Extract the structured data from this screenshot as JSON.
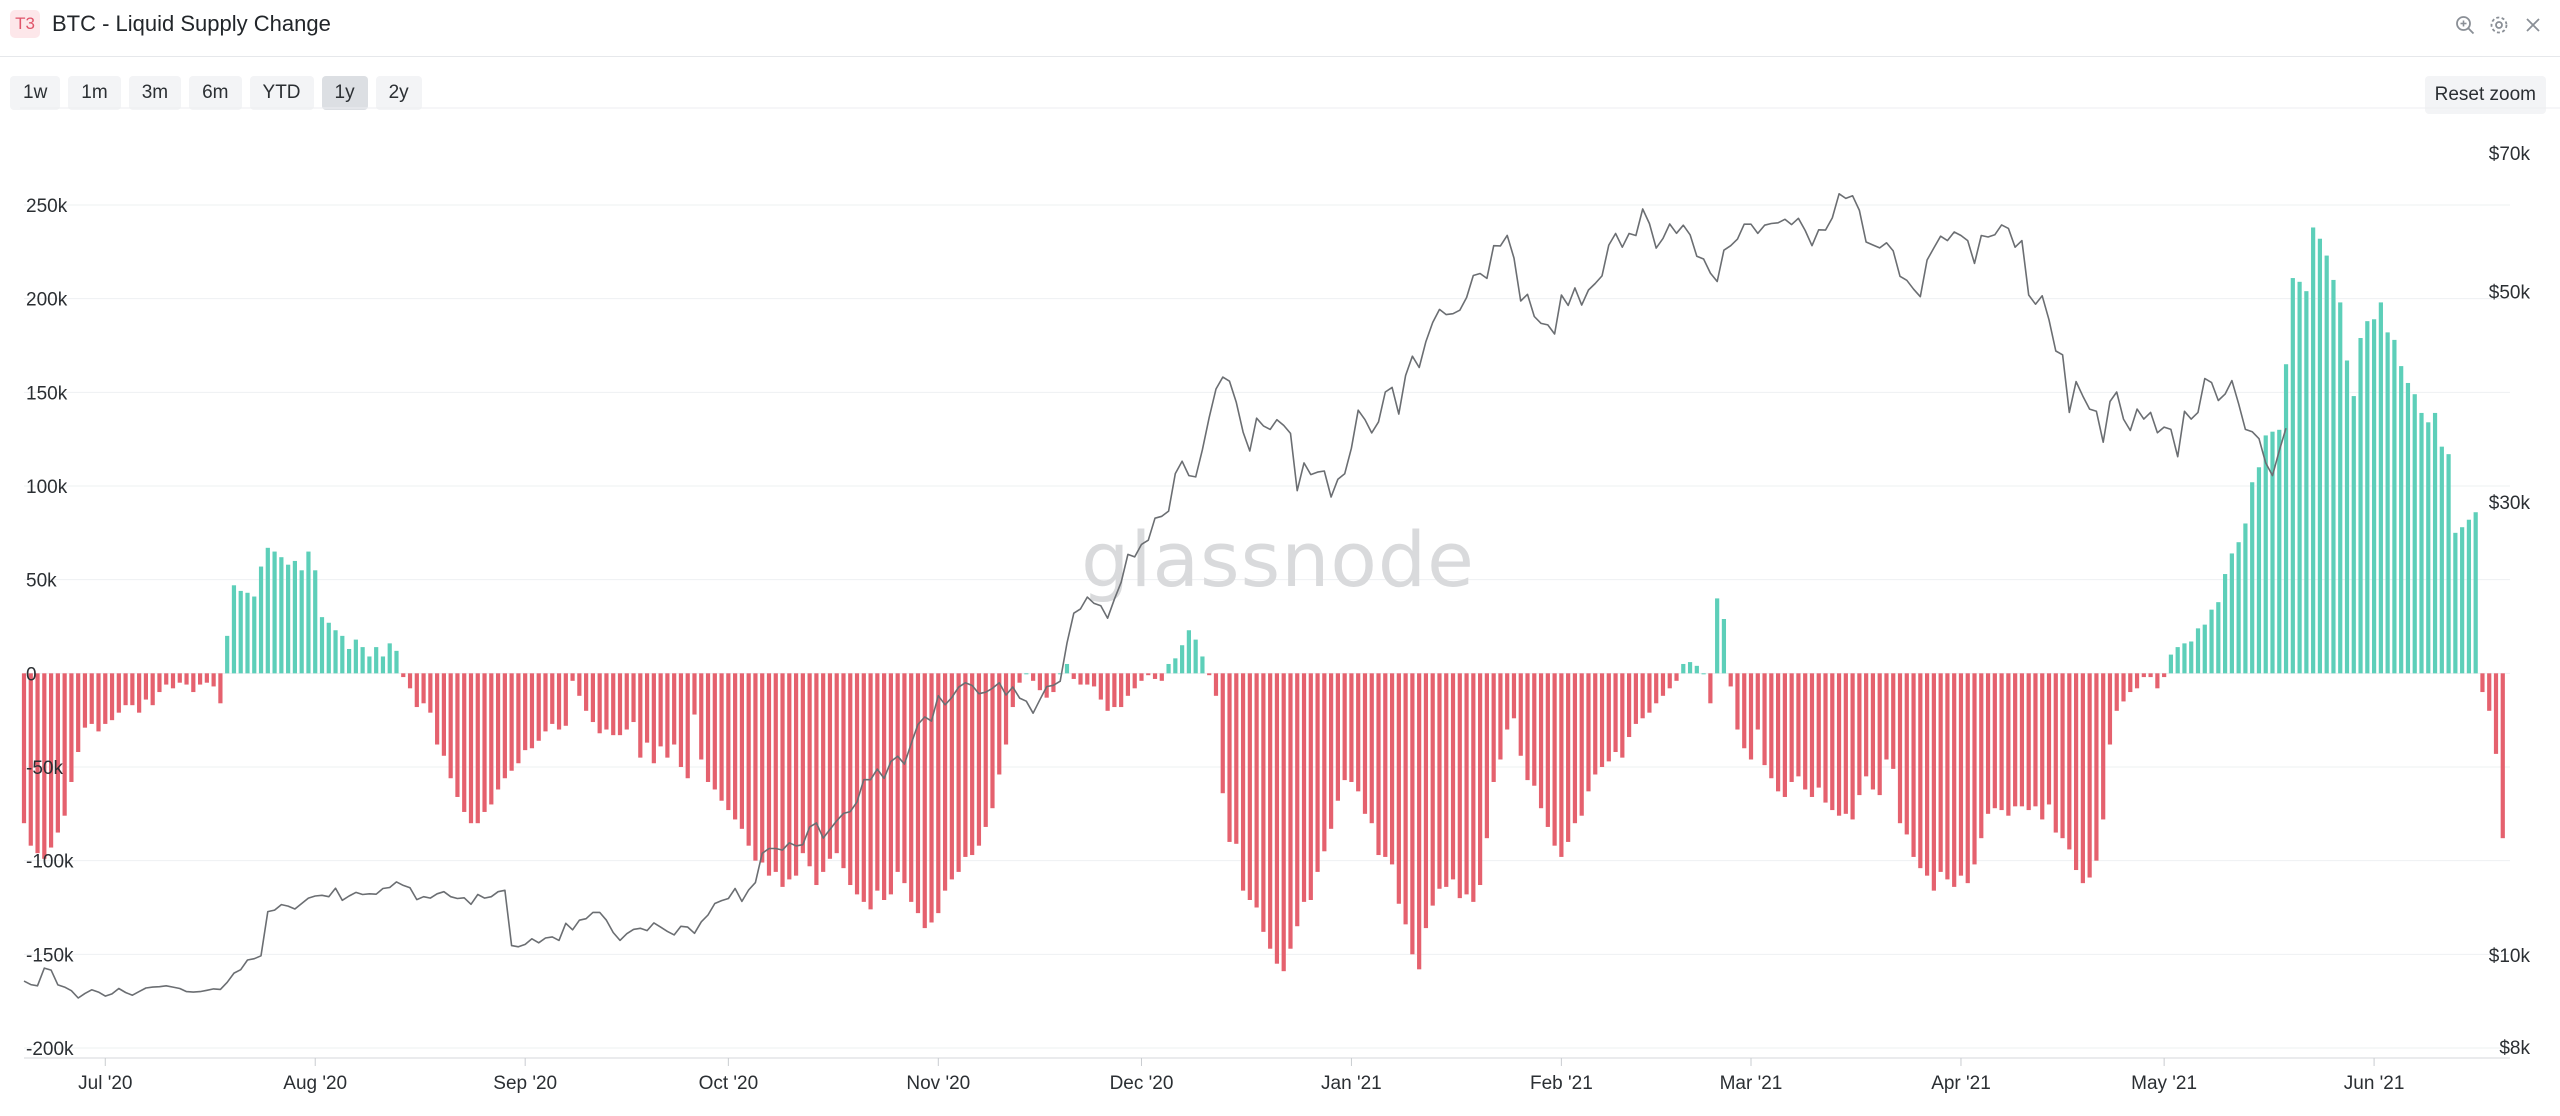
{
  "header": {
    "badge": "T3",
    "title": "BTC - Liquid Supply Change",
    "icons": [
      "zoom-in-icon",
      "gear-icon",
      "close-icon"
    ]
  },
  "toolbar": {
    "ranges": [
      {
        "label": "1w",
        "active": false
      },
      {
        "label": "1m",
        "active": false
      },
      {
        "label": "3m",
        "active": false
      },
      {
        "label": "6m",
        "active": false
      },
      {
        "label": "YTD",
        "active": false
      },
      {
        "label": "1y",
        "active": true
      },
      {
        "label": "2y",
        "active": false
      }
    ],
    "reset_label": "Reset zoom"
  },
  "watermark": "glassnode",
  "chart_data": {
    "type": "bar",
    "title": "BTC - Liquid Supply Change",
    "x_ticks": [
      "Jul '20",
      "Aug '20",
      "Sep '20",
      "Oct '20",
      "Nov '20",
      "Dec '20",
      "Jan '21",
      "Feb '21",
      "Mar '21",
      "Apr '21",
      "May '21",
      "Jun '21"
    ],
    "y_left": {
      "ticks": [
        "250k",
        "200k",
        "150k",
        "100k",
        "50k",
        "0",
        "-50k",
        "-100k",
        "-150k",
        "-200k"
      ],
      "ylim": [
        -200000,
        250000
      ]
    },
    "y_right": {
      "ticks": [
        "$70k",
        "$50k",
        "$30k",
        "$10k",
        "$8k"
      ],
      "scale": "log"
    },
    "colors": {
      "positive": "#5dcfb9",
      "negative": "#e5616e",
      "price": "#6b6e72"
    },
    "liquid_supply_change": {
      "start": "2020-06-19",
      "values": [
        -80000,
        -92000,
        -96000,
        -99000,
        -93000,
        -85000,
        -76000,
        -58000,
        -42000,
        -29000,
        -27000,
        -31000,
        -27000,
        -25000,
        -21000,
        -17000,
        -17000,
        -21000,
        -14000,
        -17000,
        -10000,
        -6000,
        -8000,
        -5000,
        -6000,
        -10000,
        -6000,
        -5000,
        -7000,
        -16000,
        20000,
        47000,
        44000,
        43000,
        41000,
        57000,
        67000,
        65000,
        62000,
        58000,
        60000,
        55000,
        65000,
        55000,
        30000,
        27000,
        23000,
        20000,
        13000,
        18000,
        14000,
        9000,
        14000,
        9000,
        16000,
        12000,
        -2000,
        -8000,
        -18000,
        -16000,
        -21000,
        -38000,
        -44000,
        -56000,
        -66000,
        -74000,
        -80000,
        -80000,
        -74000,
        -70000,
        -62000,
        -56000,
        -52000,
        -48000,
        -41000,
        -40000,
        -36000,
        -31000,
        -27000,
        -30000,
        -28000,
        -4000,
        -12000,
        -20000,
        -26000,
        -32000,
        -30000,
        -33000,
        -33000,
        -30000,
        -26000,
        -45000,
        -37000,
        -48000,
        -39000,
        -45000,
        -38000,
        -50000,
        -56000,
        -22000,
        -46000,
        -58000,
        -62000,
        -68000,
        -73000,
        -78000,
        -83000,
        -92000,
        -100000,
        -101000,
        -108000,
        -106000,
        -114000,
        -110000,
        -108000,
        -96000,
        -103000,
        -113000,
        -106000,
        -99000,
        -96000,
        -104000,
        -113000,
        -118000,
        -122000,
        -126000,
        -116000,
        -121000,
        -118000,
        -106000,
        -112000,
        -122000,
        -128000,
        -136000,
        -133000,
        -128000,
        -116000,
        -110000,
        -106000,
        -98000,
        -97000,
        -92000,
        -82000,
        -72000,
        -54000,
        -38000,
        -18000,
        -5000,
        0,
        -4000,
        -9000,
        -13000,
        -10000,
        0,
        5000,
        -3000,
        -6000,
        -6000,
        -7000,
        -14000,
        -20000,
        -18000,
        -18000,
        -12000,
        -8000,
        -4000,
        -1000,
        -3000,
        -4000,
        5000,
        8000,
        15000,
        23000,
        18000,
        9000,
        -1000,
        -12000,
        -64000,
        -90000,
        -91000,
        -116000,
        -121000,
        -125000,
        -138000,
        -147000,
        -155000,
        -159000,
        -147000,
        -135000,
        -122000,
        -121000,
        -106000,
        -95000,
        -83000,
        -68000,
        -57000,
        -58000,
        -63000,
        -75000,
        -80000,
        -97000,
        -98000,
        -102000,
        -123000,
        -134000,
        -150000,
        -158000,
        -136000,
        -124000,
        -115000,
        -114000,
        -110000,
        -120000,
        -118000,
        -122000,
        -113000,
        -88000,
        -58000,
        -46000,
        -30000,
        -24000,
        -44000,
        -57000,
        -60000,
        -72000,
        -82000,
        -92000,
        -98000,
        -90000,
        -80000,
        -76000,
        -63000,
        -54000,
        -50000,
        -47000,
        -42000,
        -45000,
        -34000,
        -27000,
        -24000,
        -21000,
        -16000,
        -12000,
        -8000,
        -4000,
        5000,
        6000,
        4000,
        0,
        -16000,
        40000,
        29000,
        -7000,
        -30000,
        -40000,
        -46000,
        -30000,
        -49000,
        -56000,
        -63000,
        -66000,
        -58000,
        -55000,
        -62000,
        -66000,
        -61000,
        -69000,
        -73000,
        -76000,
        -75000,
        -78000,
        -65000,
        -55000,
        -62000,
        -65000,
        -46000,
        -51000,
        -80000,
        -86000,
        -98000,
        -104000,
        -108000,
        -116000,
        -106000,
        -110000,
        -114000,
        -108000,
        -112000,
        -102000,
        -88000,
        -75000,
        -72000,
        -73000,
        -76000,
        -71000,
        -71000,
        -73000,
        -71000,
        -78000,
        -70000,
        -85000,
        -88000,
        -94000,
        -105000,
        -112000,
        -109000,
        -100000,
        -78000,
        -38000,
        -20000,
        -15000,
        -10000,
        -8000,
        -2000,
        -2000,
        -8000,
        -2000,
        10000,
        14000,
        16000,
        17000,
        24000,
        26000,
        34000,
        38000,
        53000,
        64000,
        70000,
        80000,
        102000,
        110000,
        127000,
        129000,
        130000,
        165000,
        211000,
        209000,
        204000,
        238000,
        232000,
        223000,
        210000,
        198000,
        167000,
        148000,
        179000,
        188000,
        189000,
        198000,
        182000,
        178000,
        164000,
        155000,
        149000,
        139000,
        134000,
        139000,
        121000,
        117000,
        75000,
        78000,
        82000,
        86000,
        -10000,
        -20000,
        -43000,
        -88000
      ]
    },
    "btc_price": {
      "start": "2020-06-19",
      "values": [
        9387,
        9307,
        9280,
        9688,
        9640,
        9300,
        9250,
        9170,
        9010,
        9110,
        9190,
        9140,
        9050,
        9100,
        9220,
        9130,
        9070,
        9150,
        9230,
        9250,
        9260,
        9280,
        9250,
        9220,
        9150,
        9140,
        9150,
        9180,
        9210,
        9200,
        9360,
        9570,
        9650,
        9880,
        9910,
        9980,
        11110,
        11150,
        11300,
        11260,
        11180,
        11330,
        11480,
        11540,
        11560,
        11520,
        11760,
        11420,
        11540,
        11640,
        11580,
        11600,
        11590,
        11750,
        11780,
        11940,
        11840,
        11770,
        11440,
        11520,
        11480,
        11600,
        11660,
        11520,
        11470,
        11490,
        11310,
        11580,
        11480,
        11520,
        11660,
        11700,
        10230,
        10200,
        10260,
        10400,
        10300,
        10420,
        10450,
        10360,
        10800,
        10630,
        10880,
        10920,
        11090,
        11090,
        10880,
        10560,
        10360,
        10530,
        10640,
        10670,
        10610,
        10810,
        10700,
        10590,
        10500,
        10720,
        10700,
        10540,
        10840,
        11020,
        11330,
        11410,
        11470,
        11750,
        11390,
        11710,
        11920,
        12800,
        12950,
        12950,
        12900,
        13130,
        13030,
        13070,
        13640,
        13780,
        13280,
        13560,
        13850,
        14100,
        14160,
        14500,
        15300,
        15300,
        15700,
        15350,
        15990,
        16200,
        15890,
        16700,
        17500,
        17820,
        17640,
        18760,
        18350,
        18680,
        19150,
        19360,
        19230,
        18850,
        18920,
        19100,
        19360,
        18790,
        19160,
        18650,
        18510,
        17980,
        18580,
        19180,
        19240,
        19430,
        21320,
        22920,
        23160,
        23830,
        23470,
        23330,
        22640,
        23710,
        24710,
        26430,
        26270,
        27080,
        27360,
        28860,
        28990,
        29360,
        32160,
        33140,
        32000,
        31900,
        34080,
        36850,
        39480,
        40640,
        40240,
        38220,
        35560,
        33970,
        36780,
        36100,
        35800,
        36650,
        36150,
        35450,
        30850,
        33000,
        32080,
        32270,
        32360,
        30380,
        31720,
        32140,
        34200,
        37500,
        36650,
        35490,
        36450,
        39200,
        39640,
        37150,
        40800,
        42750,
        41600,
        44300,
        46400,
        47900,
        47300,
        47400,
        47800,
        49300,
        52000,
        52250,
        51640,
        55900,
        55880,
        57320,
        54250,
        48880,
        49680,
        47080,
        46300,
        46130,
        45120,
        49600,
        48360,
        50460,
        48400,
        50200,
        51000,
        51950,
        55980,
        57580,
        55700,
        57580,
        57300,
        61100,
        59000,
        55580,
        56900,
        58920,
        57610,
        58750,
        57400,
        54500,
        54120,
        52300,
        51250,
        55300,
        55900,
        56800,
        58900,
        58900,
        57600,
        58750,
        59000,
        59100,
        59600,
        58840,
        59750,
        58000,
        55900,
        58100,
        58050,
        59800,
        63400,
        62700,
        63100,
        60900,
        56400,
        56000,
        55600,
        56300,
        55200,
        51900,
        51400,
        50300,
        49400,
        54000,
        55600,
        57200,
        56600,
        57790,
        57300,
        56600,
        53550,
        57300,
        57100,
        57400,
        58800,
        58300,
        55700,
        56600,
        49600,
        48500,
        49500,
        46700,
        43300,
        42900,
        37300,
        40200,
        38800,
        37600,
        37400,
        34700,
        38300,
        39200,
        36700,
        35700,
        37600,
        36700,
        37300,
        35500,
        36000,
        35800,
        33500,
        37400,
        36700,
        37300,
        40500,
        40100,
        38400,
        39000,
        40300,
        38100,
        35800,
        35600,
        35000,
        33000,
        32000,
        34000,
        35900
      ],
      "sample_ticks": [
        "$70k",
        "$50k",
        "$30k",
        "$10k",
        "$8k"
      ]
    }
  }
}
